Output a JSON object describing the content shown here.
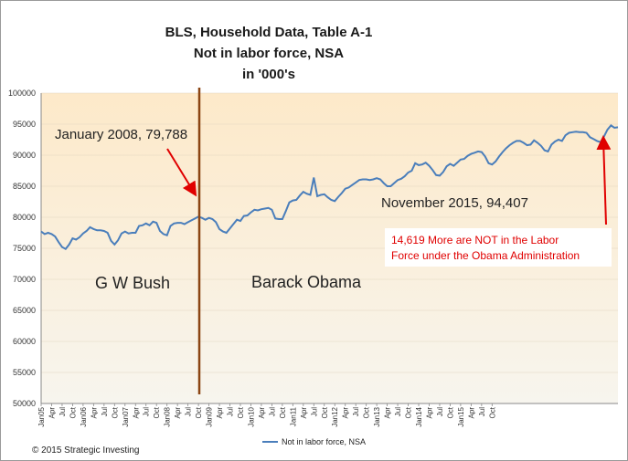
{
  "chart_data": {
    "type": "line",
    "title_lines": [
      "BLS, Household Data, Table A-1",
      "Not in labor force, NSA",
      "in '000's"
    ],
    "ylim": [
      50000,
      100000
    ],
    "yticks": [
      "100000",
      "95000",
      "90000",
      "85000",
      "80000",
      "75000",
      "70000",
      "65000",
      "60000",
      "55000",
      "50000"
    ],
    "x_tick_labels": [
      "Jan05",
      "Apr",
      "Jul",
      "Oct",
      "Jan06",
      "Apr",
      "Jul",
      "Oct",
      "Jan07",
      "Apr",
      "Jul",
      "Oct",
      "Jan08",
      "Apr",
      "Jul",
      "Oct",
      "Jan09",
      "Apr",
      "Jul",
      "Oct",
      "Jan10",
      "Apr",
      "Jul",
      "Oct",
      "Jan11",
      "Apr",
      "Jul",
      "Oct",
      "Jan12",
      "Apr",
      "Jul",
      "Oct",
      "Jan13",
      "Apr",
      "Jul",
      "Oct",
      "Jan14",
      "Apr",
      "Jul",
      "Oct",
      "Jan15",
      "Apr",
      "Jul",
      "Oct"
    ],
    "series": [
      {
        "name": "Not in labor force, NSA",
        "color": "#4a7ebb",
        "x_start": "2005-01",
        "values": [
          77700,
          77300,
          77500,
          77300,
          76900,
          76000,
          75200,
          74900,
          75600,
          76600,
          76400,
          76800,
          77400,
          77800,
          78400,
          78100,
          77900,
          77900,
          77800,
          77500,
          76200,
          75600,
          76300,
          77400,
          77700,
          77400,
          77500,
          77500,
          78600,
          78700,
          79000,
          78700,
          79300,
          79100,
          77800,
          77300,
          77100,
          78600,
          79000,
          79100,
          79100,
          78900,
          79200,
          79500,
          79788,
          80100,
          79900,
          79600,
          79900,
          79700,
          79200,
          78100,
          77700,
          77500,
          78200,
          78900,
          79600,
          79400,
          80200,
          80300,
          80800,
          81200,
          81100,
          81300,
          81400,
          81500,
          81200,
          79800,
          79700,
          79700,
          81000,
          82400,
          82700,
          82800,
          83500,
          84100,
          83800,
          83600,
          86400,
          83400,
          83600,
          83700,
          83200,
          82800,
          82600,
          83300,
          83900,
          84600,
          84800,
          85200,
          85600,
          86000,
          86100,
          86100,
          86000,
          86100,
          86300,
          86100,
          85500,
          85000,
          85000,
          85500,
          86000,
          86200,
          86600,
          87200,
          87500,
          88700,
          88400,
          88500,
          88800,
          88300,
          87600,
          86800,
          86700,
          87300,
          88200,
          88600,
          88300,
          88800,
          89300,
          89400,
          89900,
          90200,
          90400,
          90600,
          90500,
          89800,
          88700,
          88500,
          89000,
          89800,
          90500,
          91100,
          91600,
          92000,
          92300,
          92300,
          92000,
          91600,
          91700,
          92400,
          92000,
          91500,
          90800,
          90600,
          91700,
          92200,
          92500,
          92300,
          93200,
          93600,
          93700,
          93800,
          93700,
          93700,
          93600,
          92900,
          92600,
          92300,
          92100,
          93000,
          94100,
          94800,
          94407,
          94500
        ]
      }
    ],
    "annotations": {
      "jan2008": "January 2008, 79,788",
      "nov2015": "November 2015, 94,407",
      "era_bush": "G W Bush",
      "era_obama": "Barack Obama",
      "note_line1": "14,619  More are NOT in the Labor",
      "note_line2": "Force under the Obama Administration"
    },
    "legend": "Not in labor force, NSA",
    "copyright": "© 2015 Strategic Investing",
    "colors": {
      "plot_bg_top": "#fde9c9",
      "plot_bg_bottom": "#f7f5ee",
      "line": "#4a7ebb",
      "divider": "#8b4513",
      "arrow": "#e00000"
    }
  }
}
